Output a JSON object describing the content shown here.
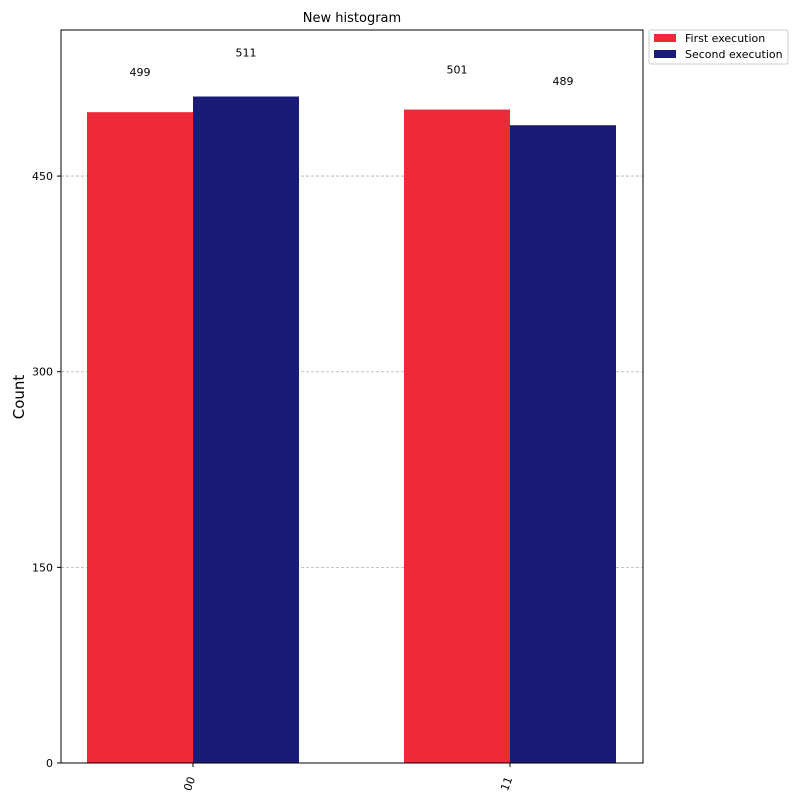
{
  "chart_data": {
    "type": "bar",
    "title": "New histogram",
    "xlabel": "",
    "ylabel": "Count",
    "categories": [
      "00",
      "11"
    ],
    "series": [
      {
        "name": "First execution",
        "values": [
          499,
          501
        ],
        "color": "#ee2a3a"
      },
      {
        "name": "Second execution",
        "values": [
          511,
          489
        ],
        "color": "#1a1b76"
      }
    ],
    "yticks": [
      0,
      150,
      300,
      450
    ],
    "ylim": [
      0,
      562
    ],
    "grid": "horizontal dashed",
    "legend_position": "outside top-right",
    "xtick_rotation": "rotated"
  }
}
